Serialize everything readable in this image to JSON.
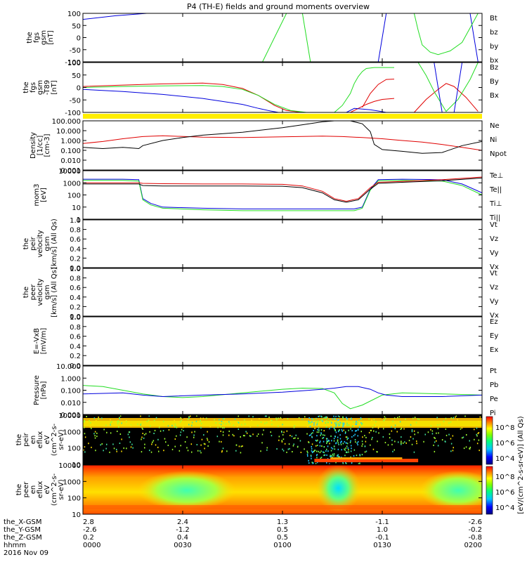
{
  "title": "P4 (TH-E) fields and ground moments overview",
  "date_label": "2016 Nov 09",
  "ephemeris": {
    "rows": [
      {
        "label": "the_X-GSM",
        "values": [
          "2.8",
          "2.4",
          "1.3",
          "-1.1",
          "-2.6"
        ]
      },
      {
        "label": "the_Y-GSM",
        "values": [
          "-2.6",
          "-1.2",
          "0.5",
          "1.0",
          "-0.2"
        ]
      },
      {
        "label": "the_Z-GSM",
        "values": [
          "0.2",
          "0.4",
          "0.5",
          "-0.1",
          "-0.8"
        ]
      },
      {
        "label": "hhmm",
        "values": [
          "0000",
          "0030",
          "0100",
          "0130",
          "0200"
        ]
      }
    ]
  },
  "colorbar": {
    "label": "[eV/(cm^2-s-sr-eV)] (All Qs)",
    "upper_ticks": [
      "10^8",
      "10^6",
      "10^4"
    ],
    "lower_ticks": [
      "10^8",
      "10^6",
      "10^4"
    ]
  },
  "colors": {
    "black": "#000000",
    "red": "#e00000",
    "green": "#22dd22",
    "blue": "#0000dd",
    "yellow": "#ffee00"
  },
  "chart_data": [
    {
      "id": "fgs",
      "type": "line",
      "ylabel": [
        "the",
        "fgs",
        "gsm",
        "[nT]"
      ],
      "ylim": [
        -100,
        100
      ],
      "yticks": [
        "100",
        "50",
        "0",
        "-50",
        "-100"
      ],
      "legend": [
        {
          "name": "Bt",
          "color": "#000000"
        },
        {
          "name": "bz",
          "color": "#e00000"
        },
        {
          "name": "by",
          "color": "#22dd22"
        },
        {
          "name": "bx",
          "color": "#0000dd"
        }
      ],
      "series": [
        {
          "name": "bx",
          "color": "#0000dd",
          "x": [
            0,
            8,
            16
          ],
          "y": [
            75,
            90,
            104
          ]
        },
        {
          "name": "bx",
          "color": "#0000dd",
          "x": [
            74,
            75,
            76
          ],
          "y": [
            -104,
            0,
            104
          ]
        },
        {
          "name": "bx",
          "color": "#0000dd",
          "x": [
            97,
            98,
            99
          ],
          "y": [
            104,
            0,
            -104
          ]
        },
        {
          "name": "by",
          "color": "#22dd22",
          "x": [
            45,
            48,
            51
          ],
          "y": [
            -104,
            0,
            104
          ]
        },
        {
          "name": "by",
          "color": "#22dd22",
          "x": [
            55,
            56,
            57
          ],
          "y": [
            104,
            0,
            -104
          ]
        },
        {
          "name": "by",
          "color": "#22dd22",
          "x": [
            83,
            84,
            85,
            87,
            89,
            92,
            95,
            97,
            99
          ],
          "y": [
            104,
            30,
            -30,
            -60,
            -70,
            -55,
            -20,
            40,
            104
          ]
        }
      ]
    },
    {
      "id": "fgs_dsl",
      "type": "line",
      "ylabel": [
        "the",
        "fgs",
        "gsm",
        "-T89",
        "[nT]"
      ],
      "ylim": [
        -125,
        125
      ],
      "yticks": [
        "100",
        "50",
        "0",
        "-50",
        "-100"
      ],
      "legend": [
        {
          "name": "Bz",
          "color": "#e00000"
        },
        {
          "name": "By",
          "color": "#22dd22"
        },
        {
          "name": "Bx",
          "color": "#0000dd"
        }
      ],
      "series": [
        {
          "name": "Bx",
          "color": "#0000dd",
          "x": [
            0,
            10,
            20,
            30,
            40,
            44,
            47,
            49
          ],
          "y": [
            -10,
            -20,
            -35,
            -55,
            -85,
            -105,
            -118,
            -125
          ]
        },
        {
          "name": "Bz",
          "color": "#e00000",
          "x": [
            0,
            10,
            20,
            30,
            35,
            40,
            44,
            48,
            51,
            55
          ],
          "y": [
            5,
            12,
            18,
            22,
            15,
            -5,
            -40,
            -90,
            -115,
            -125
          ]
        },
        {
          "name": "By",
          "color": "#22dd22",
          "x": [
            0,
            10,
            20,
            30,
            35,
            40,
            44,
            48,
            52,
            56
          ],
          "y": [
            0,
            5,
            8,
            10,
            5,
            -10,
            -40,
            -85,
            -115,
            -125
          ]
        },
        {
          "name": "Bz",
          "color": "#e00000",
          "x": [
            67,
            69,
            71,
            73,
            75,
            78
          ],
          "y": [
            -125,
            -105,
            -85,
            -70,
            -60,
            -55
          ]
        },
        {
          "name": "Bx",
          "color": "#0000dd",
          "x": [
            66,
            68,
            70,
            72,
            74,
            76
          ],
          "y": [
            -125,
            -105,
            -108,
            -112,
            -118,
            -125
          ]
        },
        {
          "name": "By",
          "color": "#22dd22",
          "x": [
            63,
            65,
            67,
            68,
            69,
            70,
            71,
            73,
            76,
            78
          ],
          "y": [
            -125,
            -90,
            -30,
            20,
            55,
            80,
            95,
            100,
            100,
            100
          ]
        },
        {
          "name": "Bz",
          "color": "#e00000",
          "x": [
            70,
            72,
            74,
            76,
            78
          ],
          "y": [
            -100,
            -30,
            15,
            40,
            42
          ]
        },
        {
          "name": "Bz",
          "color": "#e00000",
          "x": [
            83,
            86,
            89,
            91,
            93,
            96,
            99
          ],
          "y": [
            -125,
            -60,
            -10,
            20,
            5,
            -50,
            -120
          ]
        },
        {
          "name": "By",
          "color": "#22dd22",
          "x": [
            84,
            86,
            88,
            91,
            94,
            97,
            99
          ],
          "y": [
            125,
            60,
            -20,
            -120,
            -60,
            40,
            125
          ]
        },
        {
          "name": "Bx",
          "color": "#0000dd",
          "x": [
            88,
            89,
            90
          ],
          "y": [
            125,
            0,
            -125
          ]
        },
        {
          "name": "Bx",
          "color": "#0000dd",
          "x": [
            93,
            94,
            95
          ],
          "y": [
            -125,
            0,
            125
          ]
        }
      ]
    },
    {
      "id": "density",
      "type": "line",
      "scale": "log",
      "ylabel": [
        "Density",
        "[1/cc]",
        "[cm-3]"
      ],
      "ylim": [
        0.001,
        100
      ],
      "yticks": [
        "100.000",
        "10.000",
        "1.000",
        "0.100",
        "0.010",
        "0.001"
      ],
      "legend": [
        {
          "name": "Ne",
          "color": "#e00000"
        },
        {
          "name": "Ni",
          "color": "#000000"
        },
        {
          "name": "Npot",
          "color": "#0000dd"
        }
      ],
      "series": [
        {
          "name": "Ne",
          "color": "#e00000",
          "x": [
            0,
            5,
            10,
            15,
            20,
            30,
            40,
            50,
            60,
            65,
            70,
            75,
            80,
            85,
            90,
            95,
            100
          ],
          "y": [
            0.5,
            0.8,
            1.5,
            2.5,
            3.0,
            2.2,
            2.0,
            2.4,
            2.8,
            2.5,
            2.0,
            1.5,
            1.0,
            0.7,
            0.4,
            0.2,
            0.1
          ]
        },
        {
          "name": "Ni",
          "color": "#000000",
          "x": [
            0,
            5,
            10,
            14,
            15,
            20,
            25,
            30,
            40,
            50,
            55,
            60,
            63,
            67,
            70,
            72,
            73,
            75,
            80,
            85,
            90,
            95,
            100
          ],
          "y": [
            0.2,
            0.15,
            0.2,
            0.15,
            0.3,
            1.0,
            2.0,
            3.5,
            7,
            20,
            40,
            80,
            110,
            100,
            50,
            8,
            0.4,
            0.12,
            0.08,
            0.05,
            0.06,
            0.3,
            0.8
          ]
        }
      ]
    },
    {
      "id": "temperature",
      "type": "line",
      "scale": "log",
      "ylabel": [
        "mom3",
        "[eV]"
      ],
      "ylim": [
        1,
        10000
      ],
      "yticks": [
        "10000",
        "1000",
        "100",
        "10",
        "1"
      ],
      "legend": [
        {
          "name": "Te⊥",
          "color": "#e00000"
        },
        {
          "name": "Te||",
          "color": "#000000"
        },
        {
          "name": "Ti⊥",
          "color": "#0000dd"
        },
        {
          "name": "Ti||",
          "color": "#22dd22"
        }
      ],
      "series": [
        {
          "name": "Ti⊥",
          "color": "#0000dd",
          "x": [
            0,
            10,
            14,
            15,
            17,
            20,
            30,
            40,
            50,
            60,
            68,
            70,
            72,
            74,
            80,
            90,
            95,
            100
          ],
          "y": [
            2000,
            2000,
            1800,
            50,
            20,
            10,
            8,
            7,
            7,
            7,
            7,
            10,
            300,
            1800,
            2000,
            1800,
            800,
            150
          ]
        },
        {
          "name": "Ti||",
          "color": "#22dd22",
          "x": [
            0,
            10,
            14,
            15,
            17,
            20,
            30,
            40,
            50,
            60,
            68,
            70,
            72,
            74,
            80,
            90,
            95,
            100
          ],
          "y": [
            1600,
            1600,
            1400,
            40,
            15,
            8,
            6,
            5,
            5,
            5,
            5,
            8,
            250,
            1500,
            1600,
            1400,
            600,
            100
          ]
        },
        {
          "name": "Te||",
          "color": "#000000",
          "x": [
            0,
            14,
            15,
            20,
            30,
            40,
            50,
            55,
            60,
            63,
            66,
            69,
            72,
            74,
            80,
            90,
            100
          ],
          "y": [
            800,
            800,
            600,
            550,
            550,
            550,
            520,
            400,
            150,
            40,
            25,
            40,
            300,
            900,
            1100,
            1500,
            2500
          ]
        },
        {
          "name": "Te⊥",
          "color": "#e00000",
          "x": [
            0,
            14,
            15,
            20,
            30,
            40,
            50,
            55,
            60,
            63,
            66,
            69,
            72,
            74,
            80,
            90,
            100
          ],
          "y": [
            1000,
            1000,
            900,
            850,
            800,
            800,
            750,
            550,
            200,
            50,
            30,
            50,
            400,
            1100,
            1300,
            1800,
            3000
          ]
        }
      ]
    },
    {
      "id": "vpeir",
      "type": "line",
      "ylabel": [
        "the",
        "peir",
        "velocity",
        "gsm",
        "[km/s] (All Qs)"
      ],
      "ylim": [
        0,
        1
      ],
      "yticks": [
        "1.0",
        "0.8",
        "0.6",
        "0.4",
        "0.2",
        "0.0"
      ],
      "legend": [
        {
          "name": "Vt",
          "color": "#000000"
        },
        {
          "name": "Vz",
          "color": "#e00000"
        },
        {
          "name": "Vy",
          "color": "#22dd22"
        },
        {
          "name": "Vx",
          "color": "#0000dd"
        }
      ],
      "series": []
    },
    {
      "id": "vpeer",
      "type": "line",
      "ylabel": [
        "the",
        "peer",
        "velocity",
        "gsm",
        "[km/s] (All Qs)"
      ],
      "ylim": [
        0,
        1
      ],
      "yticks": [
        "1.0",
        "0.8",
        "0.6",
        "0.4",
        "0.2",
        "0.0"
      ],
      "legend": [
        {
          "name": "Vt",
          "color": "#000000"
        },
        {
          "name": "Vz",
          "color": "#e00000"
        },
        {
          "name": "Vy",
          "color": "#22dd22"
        },
        {
          "name": "Vx",
          "color": "#0000dd"
        }
      ],
      "series": []
    },
    {
      "id": "efield",
      "type": "line",
      "ylabel": [
        "E=-VxB",
        "[mV/m]"
      ],
      "ylim": [
        0,
        1
      ],
      "yticks": [
        "1.0",
        "0.8",
        "0.6",
        "0.4",
        "0.2",
        "0.0"
      ],
      "legend": [
        {
          "name": "Ez",
          "color": "#e00000"
        },
        {
          "name": "Ey",
          "color": "#22dd22"
        },
        {
          "name": "Ex",
          "color": "#0000dd"
        }
      ],
      "series": []
    },
    {
      "id": "pressure",
      "type": "line",
      "scale": "log",
      "ylabel": [
        "Pressure",
        "[nPa]"
      ],
      "ylim": [
        0.001,
        10
      ],
      "yticks": [
        "10.000",
        "1.000",
        "0.100",
        "0.010",
        "0.001"
      ],
      "legend": [
        {
          "name": "Pt",
          "color": "#000000"
        },
        {
          "name": "Pb",
          "color": "#e00000"
        },
        {
          "name": "Pe",
          "color": "#22dd22"
        },
        {
          "name": "Pi",
          "color": "#0000dd"
        }
      ],
      "series": [
        {
          "name": "Pe",
          "color": "#22dd22",
          "x": [
            0,
            5,
            10,
            15,
            20,
            25,
            30,
            40,
            50,
            55,
            60,
            63,
            65,
            67,
            70,
            75,
            80,
            90,
            100
          ],
          "y": [
            0.25,
            0.2,
            0.1,
            0.05,
            0.03,
            0.025,
            0.03,
            0.06,
            0.12,
            0.15,
            0.14,
            0.06,
            0.008,
            0.003,
            0.006,
            0.04,
            0.06,
            0.05,
            0.04
          ]
        },
        {
          "name": "Pi",
          "color": "#0000dd",
          "x": [
            0,
            10,
            15,
            20,
            30,
            40,
            50,
            55,
            60,
            63,
            66,
            69,
            72,
            74,
            76,
            80,
            90,
            100
          ],
          "y": [
            0.05,
            0.06,
            0.04,
            0.03,
            0.04,
            0.05,
            0.07,
            0.09,
            0.12,
            0.15,
            0.2,
            0.2,
            0.12,
            0.06,
            0.04,
            0.03,
            0.03,
            0.04
          ]
        }
      ]
    },
    {
      "id": "peir_eflux",
      "type": "heatmap",
      "scale": "log",
      "ylabel": [
        "the",
        "peir",
        "en",
        "eflux",
        "eV",
        "(cm^2-s-",
        "sr-eV)"
      ],
      "ylim": [
        10,
        10000
      ],
      "yticks": [
        "10000",
        "1000",
        "100",
        "10"
      ]
    },
    {
      "id": "peer_eflux",
      "type": "heatmap",
      "scale": "log",
      "ylabel": [
        "the",
        "peer",
        "en",
        "eflux",
        "eV",
        "(cm^2-s-",
        "sr-eV)"
      ],
      "ylim": [
        10,
        10000
      ],
      "yticks": [
        "10000",
        "1000",
        "100",
        "10"
      ]
    }
  ]
}
